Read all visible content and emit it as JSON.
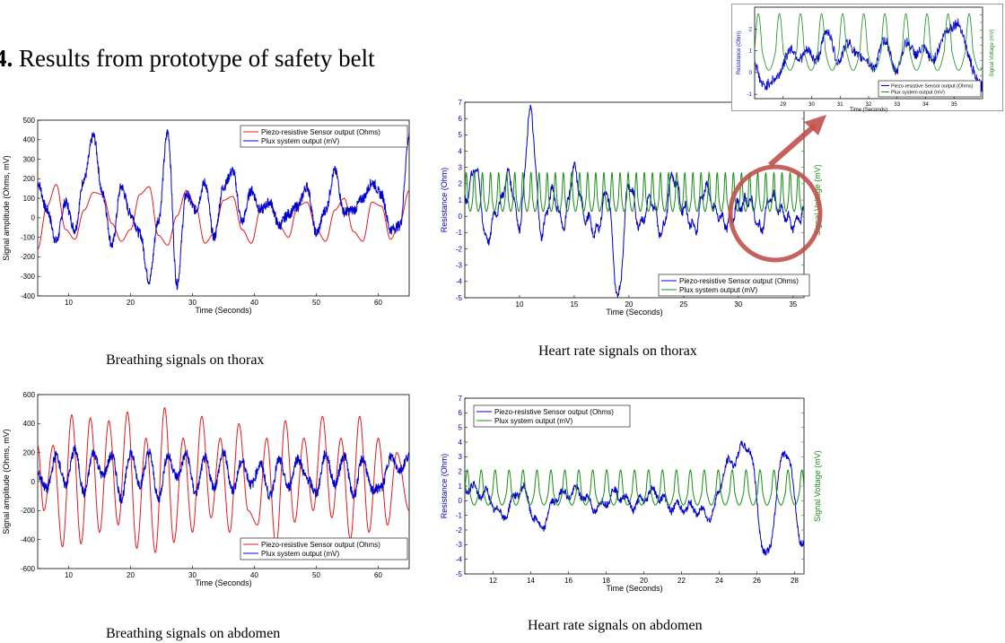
{
  "page": {
    "title_prefix": "4.",
    "title_text": " Results from prototype of safety belt"
  },
  "captions": {
    "breathing_thorax": "Breathing signals on thorax",
    "heart_thorax": "Heart rate signals on thorax",
    "breathing_abdomen": "Breathing signals on abdomen",
    "heart_abdomen": "Heart rate signals on abdomen"
  },
  "colors": {
    "red": "#e41a1c",
    "blue": "#0000cc",
    "green": "#1a8c1a",
    "highlight": "#c0504d"
  },
  "chart_data": [
    {
      "id": "breathing-thorax",
      "type": "line",
      "xlabel": "Time (Seconds)",
      "ylabel": "Signal amplitude (Ohms, mV)",
      "xlim": [
        5,
        65
      ],
      "ylim": [
        -400,
        500
      ],
      "xticks": [
        10,
        20,
        30,
        40,
        50,
        60
      ],
      "yticks": [
        -400,
        -300,
        -200,
        -100,
        0,
        100,
        200,
        300,
        400,
        500
      ],
      "legend_position": "top-right",
      "series": [
        {
          "name": "Piezo-resistive Sensor output (Ohms)",
          "color": "#e41a1c",
          "kind": "breath",
          "x": [
            5,
            6.5,
            8,
            9.5,
            11,
            12.5,
            14,
            15.5,
            17,
            18.5,
            20,
            21.5,
            23,
            24.5,
            26,
            27.5,
            29,
            30.5,
            32,
            33.5,
            35,
            36.5,
            38,
            39.5,
            41,
            42.5,
            44,
            45.5,
            47,
            48.5,
            50,
            51.5,
            53,
            54.5,
            56,
            57.5,
            59,
            60.5,
            62,
            63.5,
            65
          ],
          "y": [
            -160,
            60,
            170,
            -60,
            -110,
            40,
            130,
            120,
            -30,
            -120,
            -60,
            120,
            160,
            -90,
            -140,
            10,
            140,
            60,
            -130,
            -80,
            90,
            110,
            -60,
            -130,
            40,
            80,
            -40,
            -100,
            60,
            80,
            -60,
            -120,
            40,
            100,
            -70,
            -120,
            80,
            60,
            -110,
            -20,
            140
          ]
        },
        {
          "name": "Plux system output (mV)",
          "color": "#0000cc",
          "kind": "noisy",
          "x": [
            5,
            6.5,
            8,
            9.5,
            11,
            12.5,
            14,
            15.5,
            17,
            18.5,
            20,
            21.5,
            23,
            24.5,
            26,
            27.5,
            29,
            30.5,
            32,
            33.5,
            35,
            36.5,
            38,
            39.5,
            41,
            42.5,
            44,
            45.5,
            47,
            48.5,
            50,
            51.5,
            53,
            54.5,
            56,
            57.5,
            59,
            60.5,
            62,
            63.5,
            65
          ],
          "y": [
            180,
            40,
            -120,
            80,
            -60,
            200,
            420,
            120,
            -140,
            160,
            20,
            -80,
            -320,
            -10,
            440,
            -340,
            120,
            40,
            180,
            -100,
            160,
            240,
            -20,
            140,
            40,
            80,
            -40,
            20,
            60,
            160,
            -80,
            40,
            240,
            30,
            40,
            100,
            180,
            120,
            -60,
            -40,
            420
          ]
        }
      ]
    },
    {
      "id": "heart-thorax",
      "type": "line",
      "xlabel": "Time (Seconds)",
      "ylabel": "Resistance (Ohm)",
      "y2label": "Signal Voltage (mV)",
      "xlim": [
        5,
        36
      ],
      "ylim": [
        -5,
        7
      ],
      "xticks": [
        10,
        15,
        20,
        25,
        30,
        35
      ],
      "yticks": [
        -5,
        -4,
        -3,
        -2,
        -1,
        0,
        1,
        2,
        3,
        4,
        5,
        6,
        7
      ],
      "legend_position": "bottom-right",
      "highlight_window": [
        29,
        35.5
      ],
      "series": [
        {
          "name": "Piezo-resistive Sensor output (Ohms)",
          "color": "#0000cc",
          "kind": "hr-blue",
          "x": [
            5,
            6,
            7,
            8,
            9,
            10,
            11,
            12,
            13,
            14,
            15,
            16,
            17,
            18,
            19,
            20,
            21,
            22,
            23,
            24,
            25,
            26,
            27,
            28,
            29,
            30,
            31,
            32,
            33,
            34,
            35,
            36
          ],
          "y": [
            1,
            3,
            -1.5,
            0.5,
            2.5,
            -0.5,
            6.4,
            -1,
            1.5,
            -0.5,
            2.8,
            0,
            -1,
            1.5,
            -5,
            2,
            -0.5,
            1,
            -1,
            2.5,
            0.5,
            -0.8,
            1.8,
            0.2,
            -0.5,
            0.6,
            1,
            -0.8,
            1.2,
            0.2,
            -0.5,
            0.2
          ]
        },
        {
          "name": "Plux system output (mV)",
          "color": "#1a8c1a",
          "kind": "hr-green",
          "x": [
            5,
            36
          ],
          "y": [
            1.2,
            1.2
          ]
        }
      ]
    },
    {
      "id": "breathing-abdomen",
      "type": "line",
      "xlabel": "Time (Seconds)",
      "ylabel": "Signal amplitude (Ohms, mV)",
      "xlim": [
        5,
        65
      ],
      "ylim": [
        -600,
        600
      ],
      "xticks": [
        10,
        20,
        30,
        40,
        50,
        60
      ],
      "yticks": [
        -600,
        -400,
        -200,
        0,
        200,
        400,
        600
      ],
      "legend_position": "bottom-right",
      "series": [
        {
          "name": "Piezo-resistive Sensor output (Ohms)",
          "color": "#e41a1c",
          "kind": "breath",
          "x": [
            5,
            6,
            7.5,
            9,
            10.5,
            12,
            13.5,
            15,
            16.5,
            18,
            19.5,
            21,
            22.5,
            24,
            25.5,
            27,
            28.5,
            30,
            31.5,
            33,
            34.5,
            36,
            37.5,
            39,
            40.5,
            42,
            43.5,
            45,
            46.5,
            48,
            49.5,
            51,
            52.5,
            54,
            55.5,
            57,
            58.5,
            60,
            61.5,
            63,
            65
          ],
          "y": [
            250,
            -200,
            250,
            -450,
            460,
            -430,
            440,
            -350,
            420,
            -300,
            480,
            -460,
            300,
            -490,
            510,
            -420,
            300,
            -350,
            450,
            -250,
            300,
            -350,
            400,
            -200,
            -300,
            300,
            -450,
            420,
            -280,
            300,
            -200,
            450,
            -250,
            300,
            -400,
            450,
            -350,
            300,
            -300,
            200,
            -200
          ]
        },
        {
          "name": "Plux system output (mV)",
          "color": "#0000cc",
          "kind": "noisy",
          "x": [
            5,
            6.5,
            8,
            9.5,
            11,
            12.5,
            14,
            15.5,
            17,
            18.5,
            20,
            21.5,
            23,
            24.5,
            26,
            27.5,
            29,
            30.5,
            32,
            33.5,
            35,
            36.5,
            38,
            39.5,
            41,
            42.5,
            44,
            45.5,
            47,
            48.5,
            50,
            51.5,
            53,
            54.5,
            56,
            57.5,
            59,
            60.5,
            62,
            63.5,
            65
          ],
          "y": [
            50,
            -50,
            180,
            -20,
            220,
            -80,
            200,
            40,
            180,
            -120,
            200,
            -20,
            200,
            -120,
            180,
            30,
            190,
            -80,
            160,
            -40,
            200,
            -60,
            140,
            -20,
            120,
            -100,
            150,
            -40,
            160,
            20,
            -80,
            190,
            -20,
            180,
            -100,
            160,
            -60,
            -40,
            170,
            80,
            180
          ]
        }
      ]
    },
    {
      "id": "heart-abdomen",
      "type": "line",
      "xlabel": "Time (Seconds)",
      "ylabel": "Resistance (Ohm)",
      "y2label": "Signal Voltage (mV)",
      "xlim": [
        10.5,
        28.5
      ],
      "ylim": [
        -5,
        7
      ],
      "xticks": [
        12,
        14,
        16,
        18,
        20,
        22,
        24,
        26,
        28
      ],
      "yticks": [
        -5,
        -4,
        -3,
        -2,
        -1,
        0,
        1,
        2,
        3,
        4,
        5,
        6,
        7
      ],
      "legend_position": "top-left",
      "series": [
        {
          "name": "Piezo-resistive Sensor output (Ohms)",
          "color": "#0000cc",
          "kind": "hr-blue",
          "x": [
            10.5,
            11.5,
            12.5,
            13.5,
            14.5,
            15.5,
            16.5,
            17.5,
            18.5,
            19.5,
            20.5,
            21.5,
            22.5,
            23.5,
            24.5,
            25.5,
            26.5,
            27.5,
            28.5
          ],
          "y": [
            1,
            0.5,
            -1,
            0.8,
            -1.8,
            0.4,
            0.6,
            -0.5,
            0.5,
            -0.3,
            0.6,
            -0.4,
            -0.5,
            -1,
            2.5,
            3.8,
            -3.8,
            3.5,
            -3.2
          ]
        },
        {
          "name": "Plux system output (mV)",
          "color": "#1a8c1a",
          "kind": "hr-green",
          "x": [
            10.5,
            28.5
          ],
          "y": [
            0.6,
            0.6
          ]
        }
      ]
    },
    {
      "id": "heart-thorax-zoom",
      "type": "line",
      "xlabel": "Time (Seconds)",
      "ylabel": "Resistance (Ohm)",
      "y2label": "Signal Voltage (mV)",
      "xlim": [
        28,
        36
      ],
      "ylim": [
        -1.2,
        3
      ],
      "xticks": [
        29,
        30,
        31,
        32,
        33,
        34,
        35
      ],
      "yticks": [
        -1,
        0,
        1,
        2
      ],
      "legend_position": "bottom-right",
      "series": [
        {
          "name": "Piezo-resistive Sensor output (Ohms)",
          "color": "#0000cc",
          "kind": "hr-blue",
          "x": [
            28,
            28.5,
            29,
            29.5,
            30,
            30.5,
            31,
            31.5,
            32,
            32.5,
            33,
            33.5,
            34,
            34.5,
            35,
            35.5,
            36
          ],
          "y": [
            0.4,
            -0.8,
            0.5,
            1,
            0.6,
            1.6,
            0.8,
            1.2,
            0.2,
            1.2,
            0.4,
            1.3,
            0.7,
            1.1,
            2.5,
            0.9,
            -1
          ]
        },
        {
          "name": "Plux system output (mV)",
          "color": "#1a8c1a",
          "kind": "hr-green",
          "x": [
            28,
            36
          ],
          "y": [
            1,
            1
          ]
        }
      ]
    }
  ]
}
